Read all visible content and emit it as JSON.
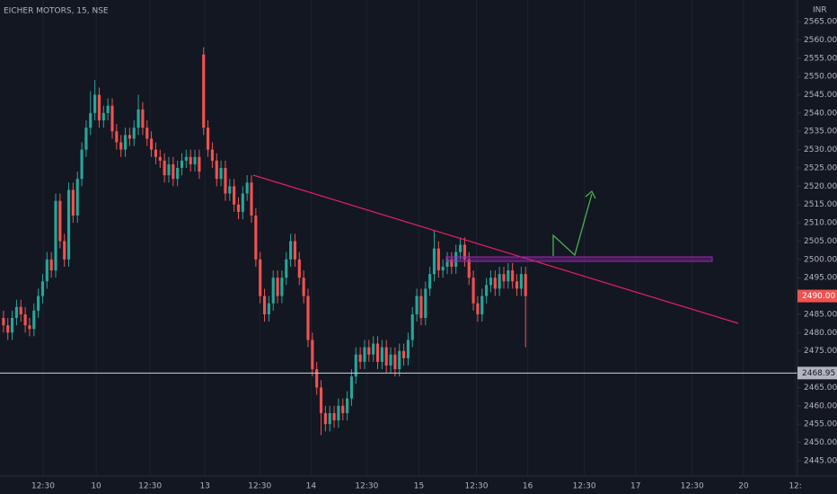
{
  "chart_data": {
    "type": "candlestick",
    "title": "EICHER MOTORS, 15, NSE",
    "currency": "INR",
    "up_color": "#26a69a",
    "down_color": "#ef5350",
    "xgrid": true,
    "open": [
      2484,
      2482,
      2480,
      2484,
      2487,
      2485,
      2482,
      2481,
      2486,
      2490,
      2494,
      2500,
      2497,
      2516,
      2505,
      2500,
      2519,
      2512,
      2522,
      2530,
      2536,
      2540,
      2545,
      2538,
      2540,
      2542,
      2535,
      2532,
      2530,
      2534,
      2533,
      2536,
      2541,
      2536,
      2533,
      2530,
      2528,
      2527,
      2523,
      2526,
      2522,
      2525,
      2527,
      2528,
      2526,
      2528,
      2556,
      2536,
      2530,
      2527,
      2522,
      2525,
      2518,
      2520,
      2515,
      2513,
      2518,
      2521,
      2512,
      2500,
      2490,
      2485,
      2488,
      2495,
      2490,
      2495,
      2500,
      2505,
      2500,
      2495,
      2490,
      2478,
      2470,
      2465,
      2458,
      2455,
      2458,
      2456,
      2460,
      2458,
      2462,
      2468,
      2474,
      2472,
      2476,
      2474,
      2477,
      2472,
      2476,
      2471,
      2474,
      2470,
      2475,
      2473,
      2478,
      2485,
      2490,
      2484,
      2492,
      2496,
      2503,
      2497,
      2498,
      2500,
      2498,
      2502,
      2504,
      2500,
      2495,
      2488,
      2485,
      2490,
      2493,
      2495,
      2492,
      2496,
      2494,
      2497,
      2494,
      2492,
      2496
    ],
    "high": [
      2486,
      2484,
      2486,
      2489,
      2489,
      2487,
      2484,
      2488,
      2492,
      2496,
      2502,
      2502,
      2518,
      2518,
      2507,
      2521,
      2521,
      2524,
      2532,
      2538,
      2546,
      2549,
      2547,
      2542,
      2544,
      2544,
      2537,
      2534,
      2536,
      2536,
      2538,
      2545,
      2543,
      2538,
      2535,
      2532,
      2530,
      2529,
      2528,
      2528,
      2527,
      2529,
      2530,
      2530,
      2530,
      2530,
      2558,
      2538,
      2532,
      2529,
      2527,
      2527,
      2522,
      2522,
      2517,
      2520,
      2523,
      2523,
      2514,
      2502,
      2492,
      2490,
      2497,
      2497,
      2497,
      2502,
      2507,
      2507,
      2502,
      2497,
      2492,
      2480,
      2472,
      2467,
      2460,
      2460,
      2460,
      2462,
      2462,
      2464,
      2470,
      2476,
      2476,
      2478,
      2478,
      2479,
      2479,
      2478,
      2478,
      2476,
      2476,
      2477,
      2477,
      2480,
      2487,
      2492,
      2492,
      2494,
      2498,
      2508,
      2505,
      2500,
      2502,
      2502,
      2504,
      2506,
      2506,
      2502,
      2497,
      2490,
      2492,
      2495,
      2497,
      2497,
      2498,
      2498,
      2499,
      2499,
      2496,
      2498,
      2498
    ],
    "low": [
      2480,
      2478,
      2478,
      2482,
      2483,
      2480,
      2479,
      2479,
      2484,
      2488,
      2492,
      2495,
      2495,
      2503,
      2498,
      2498,
      2510,
      2510,
      2520,
      2528,
      2534,
      2538,
      2536,
      2536,
      2538,
      2533,
      2530,
      2528,
      2528,
      2531,
      2531,
      2534,
      2534,
      2531,
      2528,
      2526,
      2525,
      2521,
      2521,
      2520,
      2520,
      2523,
      2525,
      2524,
      2524,
      2522,
      2534,
      2528,
      2525,
      2520,
      2520,
      2516,
      2516,
      2513,
      2511,
      2511,
      2516,
      2510,
      2498,
      2488,
      2483,
      2483,
      2486,
      2488,
      2488,
      2493,
      2498,
      2498,
      2493,
      2488,
      2476,
      2468,
      2463,
      2452,
      2453,
      2453,
      2454,
      2454,
      2456,
      2456,
      2460,
      2466,
      2470,
      2470,
      2472,
      2472,
      2470,
      2470,
      2469,
      2469,
      2468,
      2468,
      2471,
      2471,
      2476,
      2483,
      2482,
      2482,
      2490,
      2494,
      2495,
      2495,
      2496,
      2496,
      2496,
      2500,
      2498,
      2493,
      2486,
      2483,
      2483,
      2488,
      2491,
      2490,
      2490,
      2492,
      2492,
      2492,
      2490,
      2490,
      2476
    ],
    "close": [
      2482,
      2480,
      2484,
      2487,
      2485,
      2482,
      2481,
      2486,
      2490,
      2494,
      2500,
      2497,
      2516,
      2505,
      2500,
      2519,
      2512,
      2522,
      2530,
      2536,
      2540,
      2545,
      2538,
      2540,
      2542,
      2535,
      2532,
      2530,
      2534,
      2533,
      2536,
      2541,
      2536,
      2533,
      2530,
      2528,
      2527,
      2523,
      2526,
      2522,
      2525,
      2527,
      2528,
      2526,
      2528,
      2524,
      2536,
      2530,
      2527,
      2522,
      2525,
      2518,
      2520,
      2515,
      2513,
      2518,
      2521,
      2512,
      2500,
      2490,
      2485,
      2488,
      2495,
      2490,
      2495,
      2500,
      2505,
      2500,
      2495,
      2490,
      2478,
      2470,
      2465,
      2458,
      2455,
      2458,
      2456,
      2460,
      2458,
      2462,
      2468,
      2474,
      2472,
      2476,
      2474,
      2477,
      2472,
      2476,
      2471,
      2474,
      2470,
      2475,
      2473,
      2478,
      2485,
      2490,
      2484,
      2492,
      2496,
      2503,
      2497,
      2498,
      2500,
      2498,
      2502,
      2504,
      2500,
      2495,
      2488,
      2485,
      2490,
      2493,
      2495,
      2492,
      2496,
      2494,
      2497,
      2494,
      2492,
      2496,
      2490
    ],
    "xlim": [
      -0.8,
      182.5
    ],
    "xticks": [
      {
        "value": 9.1,
        "label": "12:30"
      },
      {
        "value": 21.3,
        "label": "10"
      },
      {
        "value": 33.7,
        "label": "12:30"
      },
      {
        "value": 46.3,
        "label": "13"
      },
      {
        "value": 58.9,
        "label": "12:30"
      },
      {
        "value": 70.7,
        "label": "14"
      },
      {
        "value": 83.5,
        "label": "12:30"
      },
      {
        "value": 95.5,
        "label": "15"
      },
      {
        "value": 108.7,
        "label": "12:30"
      },
      {
        "value": 120.5,
        "label": "16"
      },
      {
        "value": 133.5,
        "label": "12:30"
      },
      {
        "value": 145.3,
        "label": "17"
      },
      {
        "value": 158.3,
        "label": "12:30"
      },
      {
        "value": 170.1,
        "label": "20"
      },
      {
        "value": 182,
        "label": "12:"
      }
    ],
    "ylim": [
      2440.8,
      2570.9
    ],
    "yticks": [
      {
        "value": 2445,
        "label": "2445.00"
      },
      {
        "value": 2450,
        "label": "2450.00"
      },
      {
        "value": 2455,
        "label": "2455.00"
      },
      {
        "value": 2460,
        "label": "2460.00"
      },
      {
        "value": 2465,
        "label": "2465.00"
      },
      {
        "value": 2475,
        "label": "2475.00"
      },
      {
        "value": 2480,
        "label": "2480.00"
      },
      {
        "value": 2485,
        "label": "2485.00"
      },
      {
        "value": 2495,
        "label": "2495.00"
      },
      {
        "value": 2500,
        "label": "2500.00"
      },
      {
        "value": 2505,
        "label": "2505.00"
      },
      {
        "value": 2510,
        "label": "2510.00"
      },
      {
        "value": 2515,
        "label": "2515.00"
      },
      {
        "value": 2520,
        "label": "2520.00"
      },
      {
        "value": 2525,
        "label": "2525.00"
      },
      {
        "value": 2530,
        "label": "2530.00"
      },
      {
        "value": 2535,
        "label": "2535.00"
      },
      {
        "value": 2540,
        "label": "2540.00"
      },
      {
        "value": 2545,
        "label": "2545.00"
      },
      {
        "value": 2550,
        "label": "2550.00"
      },
      {
        "value": 2555,
        "label": "2555.00"
      },
      {
        "value": 2560,
        "label": "2560.00"
      },
      {
        "value": 2565,
        "label": "2565.00"
      }
    ],
    "last_price": {
      "value": 2490,
      "label": "2490.00"
    },
    "price_line": 2468.95
  }
}
